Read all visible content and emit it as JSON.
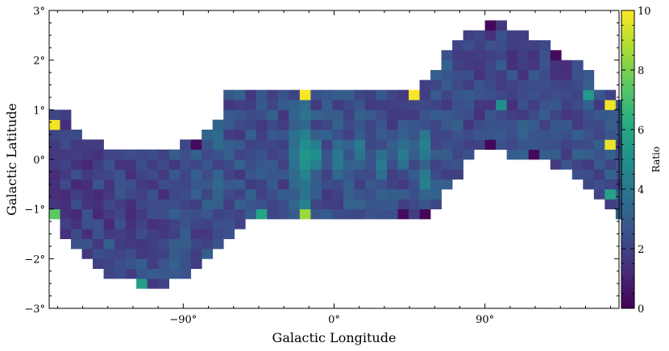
{
  "chart_data": {
    "type": "heatmap",
    "title": "",
    "xlabel": "Galactic Longitude",
    "ylabel": "Galactic Latitude",
    "xlim": [
      -170,
      170
    ],
    "ylim": [
      -3,
      3
    ],
    "x_ticks": [
      {
        "value": -90,
        "label": "−90°"
      },
      {
        "value": 0,
        "label": "0°"
      },
      {
        "value": 90,
        "label": "90°"
      }
    ],
    "y_ticks": [
      {
        "value": 3,
        "label": "3°"
      },
      {
        "value": 2,
        "label": "2°"
      },
      {
        "value": 1,
        "label": "1°"
      },
      {
        "value": 0,
        "label": "0°"
      },
      {
        "value": -1,
        "label": "−1°"
      },
      {
        "value": -2,
        "label": "−2°"
      },
      {
        "value": -3,
        "label": "−3°"
      }
    ],
    "bin_width_deg": 6.5,
    "bin_height_deg": 0.2,
    "colorbar": {
      "label": "Ratio",
      "min": 0,
      "max": 10,
      "ticks": [
        {
          "value": 0,
          "label": "0"
        },
        {
          "value": 2,
          "label": "2"
        },
        {
          "value": 4,
          "label": "4"
        },
        {
          "value": 6,
          "label": "6"
        },
        {
          "value": 8,
          "label": "8"
        },
        {
          "value": 10,
          "label": "10"
        }
      ],
      "colormap": "viridis"
    },
    "grid": false,
    "footprint_edges": {
      "top": [
        [
          -169,
          1.05
        ],
        [
          -162,
          1.05
        ],
        [
          -156,
          0.55
        ],
        [
          -148,
          0.5
        ],
        [
          -138,
          0.3
        ],
        [
          -128,
          0.25
        ],
        [
          -105,
          0.25
        ],
        [
          -85,
          0.35
        ],
        [
          -70,
          0.75
        ],
        [
          -62,
          1.4
        ],
        [
          -40,
          1.38
        ],
        [
          -20,
          1.38
        ],
        [
          0,
          1.38
        ],
        [
          20,
          1.36
        ],
        [
          40,
          1.36
        ],
        [
          52,
          1.4
        ],
        [
          58,
          1.75
        ],
        [
          66,
          2.1
        ],
        [
          72,
          2.3
        ],
        [
          80,
          2.55
        ],
        [
          90,
          2.7
        ],
        [
          100,
          2.72
        ],
        [
          112,
          2.55
        ],
        [
          126,
          2.4
        ],
        [
          140,
          2.05
        ],
        [
          150,
          1.85
        ],
        [
          160,
          1.4
        ],
        [
          166,
          1.3
        ],
        [
          170,
          1.2
        ]
      ],
      "bottom": [
        [
          -169,
          -1.05
        ],
        [
          -160,
          -1.7
        ],
        [
          -148,
          -2.05
        ],
        [
          -136,
          -2.3
        ],
        [
          -122,
          -2.45
        ],
        [
          -110,
          -2.55
        ],
        [
          -92,
          -2.45
        ],
        [
          -82,
          -2.25
        ],
        [
          -72,
          -1.85
        ],
        [
          -62,
          -1.5
        ],
        [
          -50,
          -1.25
        ],
        [
          -30,
          -1.25
        ],
        [
          -10,
          -1.25
        ],
        [
          10,
          -1.25
        ],
        [
          30,
          -1.25
        ],
        [
          46,
          -1.25
        ],
        [
          58,
          -1.1
        ],
        [
          66,
          -0.6
        ],
        [
          72,
          -0.4
        ],
        [
          84,
          0.1
        ],
        [
          98,
          0.15
        ],
        [
          112,
          0.05
        ],
        [
          124,
          -0.05
        ],
        [
          138,
          -0.25
        ],
        [
          150,
          -0.45
        ],
        [
          158,
          -0.7
        ],
        [
          166,
          -1.1
        ],
        [
          170,
          -1.2
        ]
      ]
    },
    "ridge_points": [
      {
        "lon": -20,
        "lat": 0.0,
        "ratio": 6.6
      },
      {
        "lon": -20,
        "lat": 0.3,
        "ratio": 6.3
      },
      {
        "lon": -20,
        "lat": -0.3,
        "ratio": 6.0
      },
      {
        "lon": -20,
        "lat": 0.9,
        "ratio": 5.2
      },
      {
        "lon": -20,
        "lat": -0.9,
        "ratio": 5.4
      },
      {
        "lon": -13,
        "lat": 0.1,
        "ratio": 5.6
      },
      {
        "lon": 0,
        "lat": 0.0,
        "ratio": 5.2
      },
      {
        "lon": 13,
        "lat": 0.2,
        "ratio": 5.0
      },
      {
        "lon": 26,
        "lat": -0.1,
        "ratio": 4.8
      },
      {
        "lon": 39,
        "lat": 0.1,
        "ratio": 4.7
      },
      {
        "lon": 52,
        "lat": 0.3,
        "ratio": 5.3
      },
      {
        "lon": 52,
        "lat": -0.4,
        "ratio": 5.1
      },
      {
        "lon": -72,
        "lat": 0.5,
        "ratio": 4.7
      },
      {
        "lon": -72,
        "lat": -0.5,
        "ratio": 4.4
      }
    ],
    "highlight_cells": [
      {
        "lon": -166,
        "lat": 0.8,
        "ratio": 9.8
      },
      {
        "lon": -169,
        "lat": -1.2,
        "ratio": 7.5
      },
      {
        "lon": -169,
        "lat": -1.5,
        "ratio": 6.8
      },
      {
        "lon": -153,
        "lat": -1.95,
        "ratio": 8.4
      },
      {
        "lon": -146,
        "lat": -2.1,
        "ratio": 6.5
      },
      {
        "lon": -113,
        "lat": -2.45,
        "ratio": 5.6
      },
      {
        "lon": -72,
        "lat": -1.95,
        "ratio": 6.2
      },
      {
        "lon": -46,
        "lat": -1.1,
        "ratio": 5.9
      },
      {
        "lon": -20,
        "lat": -1.1,
        "ratio": 8.5
      },
      {
        "lon": -20,
        "lat": 1.3,
        "ratio": 9.9
      },
      {
        "lon": 0,
        "lat": 1.5,
        "ratio": 6.5
      },
      {
        "lon": 6,
        "lat": 1.5,
        "ratio": 8.2
      },
      {
        "lon": 6,
        "lat": -1.3,
        "ratio": 5.8
      },
      {
        "lon": 13,
        "lat": -1.3,
        "ratio": 9.9
      },
      {
        "lon": 33,
        "lat": -1.3,
        "ratio": 9.8
      },
      {
        "lon": 46,
        "lat": 1.3,
        "ratio": 9.9
      },
      {
        "lon": 52,
        "lat": 1.7,
        "ratio": 6.0
      },
      {
        "lon": 58,
        "lat": 1.9,
        "ratio": 7.2
      },
      {
        "lon": 163,
        "lat": 1.1,
        "ratio": 9.8
      },
      {
        "lon": 163,
        "lat": 0.3,
        "ratio": 9.7
      },
      {
        "lon": 163,
        "lat": -0.7,
        "ratio": 5.8
      },
      {
        "lon": 149,
        "lat": 1.3,
        "ratio": 5.4
      },
      {
        "lon": 100,
        "lat": 1.0,
        "ratio": 5.0
      }
    ],
    "low_cells": [
      {
        "lon": -59,
        "lat": 1.5,
        "ratio": 0.2
      },
      {
        "lon": -46,
        "lat": 1.7,
        "ratio": 0.3
      },
      {
        "lon": -40,
        "lat": 1.5,
        "ratio": 0.2
      },
      {
        "lon": -79,
        "lat": 0.7,
        "ratio": 0.2
      },
      {
        "lon": -85,
        "lat": 0.3,
        "ratio": 0.3
      },
      {
        "lon": -124,
        "lat": 0.3,
        "ratio": 0.2
      },
      {
        "lon": -110,
        "lat": -2.6,
        "ratio": 0.3
      },
      {
        "lon": -100,
        "lat": -2.6,
        "ratio": 0.3
      },
      {
        "lon": -7,
        "lat": -1.3,
        "ratio": 0.2
      },
      {
        "lon": 39,
        "lat": -1.1,
        "ratio": 0.3
      },
      {
        "lon": 52,
        "lat": -1.1,
        "ratio": 0.2
      },
      {
        "lon": 85,
        "lat": 2.7,
        "ratio": 0.3
      },
      {
        "lon": 92,
        "lat": 2.7,
        "ratio": 0.2
      },
      {
        "lon": 105,
        "lat": 2.9,
        "ratio": 0.3
      },
      {
        "lon": 131,
        "lat": 2.1,
        "ratio": 0.3
      },
      {
        "lon": 92,
        "lat": 0.2,
        "ratio": 0.2
      },
      {
        "lon": 118,
        "lat": 0.0,
        "ratio": 0.3
      },
      {
        "lon": 157,
        "lat": -1.0,
        "ratio": 0.3
      }
    ]
  }
}
